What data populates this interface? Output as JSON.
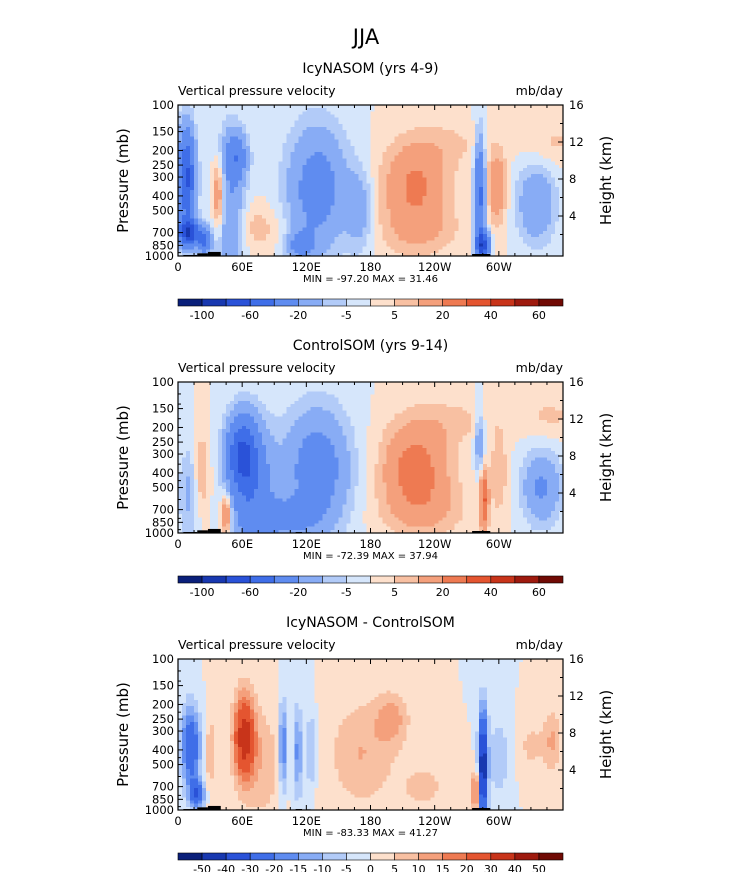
{
  "page": {
    "title": "JJA"
  },
  "chart_data": [
    {
      "type": "heatmap",
      "title": "IcyNASOM (yrs 4-9)",
      "left_label": "Vertical pressure velocity",
      "right_label": "mb/day",
      "ylabel": "Pressure (mb)",
      "y2label": "Height (km)",
      "x_ticks": [
        "0",
        "60E",
        "120E",
        "180",
        "120W",
        "60W"
      ],
      "x_tick_values": [
        0,
        60,
        120,
        180,
        240,
        300
      ],
      "xlim": [
        0,
        360
      ],
      "y_ticks": [
        "100",
        "150",
        "200",
        "250",
        "300",
        "400",
        "500",
        "700",
        "850",
        "1000"
      ],
      "y_tick_values": [
        100,
        150,
        200,
        250,
        300,
        400,
        500,
        700,
        850,
        1000
      ],
      "ylim": [
        1000,
        100
      ],
      "y_scale": "log",
      "y2_ticks": [
        "4",
        "8",
        "12",
        "16"
      ],
      "stats": "MIN = -97.20   MAX =  31.46",
      "levels": [
        -100,
        -80,
        -60,
        -40,
        -20,
        -10,
        -5,
        0,
        5,
        10,
        20,
        30,
        40,
        50,
        60
      ],
      "colorbar_labels": [
        "-100",
        "-60",
        "-20",
        "-5",
        "5",
        "20",
        "40",
        "60"
      ],
      "colors": [
        "#0a1f7a",
        "#1838b0",
        "#2a52d8",
        "#3f6ee8",
        "#5f8cf0",
        "#88acf5",
        "#b2cbf8",
        "#d6e6fb",
        "#fde0cc",
        "#f8c0a2",
        "#f4a07c",
        "#ee7a52",
        "#e45530",
        "#c8341a",
        "#9e1a0e",
        "#700a04"
      ],
      "blobs": [
        {
          "x": 8,
          "p": 300,
          "dx": 8,
          "dlp": 0.7,
          "v": -65
        },
        {
          "x": 10,
          "p": 700,
          "dx": 10,
          "dlp": 0.2,
          "v": -75
        },
        {
          "x": 25,
          "p": 800,
          "dx": 6,
          "dlp": 0.18,
          "v": -45
        },
        {
          "x": 38,
          "p": 400,
          "dx": 6,
          "dlp": 0.55,
          "v": 25
        },
        {
          "x": 48,
          "p": 500,
          "dx": 14,
          "dlp": 1.2,
          "v": -20
        },
        {
          "x": 55,
          "p": 220,
          "dx": 10,
          "dlp": 0.35,
          "v": -30
        },
        {
          "x": 75,
          "p": 650,
          "dx": 22,
          "dlp": 0.35,
          "v": 8
        },
        {
          "x": 130,
          "p": 360,
          "dx": 28,
          "dlp": 0.95,
          "v": -28
        },
        {
          "x": 170,
          "p": 500,
          "dx": 12,
          "dlp": 0.6,
          "v": -15
        },
        {
          "x": 115,
          "p": 850,
          "dx": 12,
          "dlp": 0.2,
          "v": -25
        },
        {
          "x": 222,
          "p": 340,
          "dx": 30,
          "dlp": 0.65,
          "v": 22
        },
        {
          "x": 225,
          "p": 700,
          "dx": 40,
          "dlp": 0.4,
          "v": 8
        },
        {
          "x": 255,
          "p": 180,
          "dx": 35,
          "dlp": 0.35,
          "v": 5
        },
        {
          "x": 282,
          "p": 400,
          "dx": 5,
          "dlp": 0.85,
          "v": -45
        },
        {
          "x": 285,
          "p": 850,
          "dx": 6,
          "dlp": 0.2,
          "v": -70
        },
        {
          "x": 298,
          "p": 350,
          "dx": 9,
          "dlp": 0.55,
          "v": 18
        },
        {
          "x": 335,
          "p": 450,
          "dx": 18,
          "dlp": 0.6,
          "v": -20
        },
        {
          "x": 350,
          "p": 180,
          "dx": 30,
          "dlp": 0.35,
          "v": 6
        }
      ]
    },
    {
      "type": "heatmap",
      "title": "ControlSOM (yrs 9-14)",
      "left_label": "Vertical pressure velocity",
      "right_label": "mb/day",
      "ylabel": "Pressure (mb)",
      "y2label": "Height (km)",
      "x_ticks": [
        "0",
        "60E",
        "120E",
        "180",
        "120W",
        "60W"
      ],
      "x_tick_values": [
        0,
        60,
        120,
        180,
        240,
        300
      ],
      "xlim": [
        0,
        360
      ],
      "y_ticks": [
        "100",
        "150",
        "200",
        "250",
        "300",
        "400",
        "500",
        "700",
        "850",
        "1000"
      ],
      "y_tick_values": [
        100,
        150,
        200,
        250,
        300,
        400,
        500,
        700,
        850,
        1000
      ],
      "ylim": [
        1000,
        100
      ],
      "y_scale": "log",
      "y2_ticks": [
        "4",
        "8",
        "12",
        "16"
      ],
      "stats": "MIN = -72.39   MAX =  37.94",
      "levels": [
        -100,
        -80,
        -60,
        -40,
        -20,
        -10,
        -5,
        0,
        5,
        10,
        20,
        30,
        40,
        50,
        60
      ],
      "colorbar_labels": [
        "-100",
        "-60",
        "-20",
        "-5",
        "5",
        "20",
        "40",
        "60"
      ],
      "colors": [
        "#0a1f7a",
        "#1838b0",
        "#2a52d8",
        "#3f6ee8",
        "#5f8cf0",
        "#88acf5",
        "#b2cbf8",
        "#d6e6fb",
        "#fde0cc",
        "#f8c0a2",
        "#f4a07c",
        "#ee7a52",
        "#e45530",
        "#c8341a",
        "#9e1a0e",
        "#700a04"
      ],
      "blobs": [
        {
          "x": 10,
          "p": 550,
          "dx": 10,
          "dlp": 0.7,
          "v": -12
        },
        {
          "x": 22,
          "p": 400,
          "dx": 7,
          "dlp": 0.6,
          "v": 12
        },
        {
          "x": 45,
          "p": 750,
          "dx": 5,
          "dlp": 0.3,
          "v": 25
        },
        {
          "x": 60,
          "p": 300,
          "dx": 14,
          "dlp": 0.55,
          "v": -55
        },
        {
          "x": 70,
          "p": 550,
          "dx": 20,
          "dlp": 1.0,
          "v": -30
        },
        {
          "x": 130,
          "p": 380,
          "dx": 30,
          "dlp": 0.9,
          "v": -30
        },
        {
          "x": 100,
          "p": 800,
          "dx": 30,
          "dlp": 0.3,
          "v": -20
        },
        {
          "x": 222,
          "p": 360,
          "dx": 30,
          "dlp": 0.65,
          "v": 25
        },
        {
          "x": 230,
          "p": 700,
          "dx": 40,
          "dlp": 0.45,
          "v": 10
        },
        {
          "x": 260,
          "p": 180,
          "dx": 40,
          "dlp": 0.35,
          "v": 6
        },
        {
          "x": 286,
          "p": 600,
          "dx": 4,
          "dlp": 0.5,
          "v": 30
        },
        {
          "x": 282,
          "p": 250,
          "dx": 5,
          "dlp": 0.5,
          "v": -18
        },
        {
          "x": 300,
          "p": 400,
          "dx": 8,
          "dlp": 0.6,
          "v": 10
        },
        {
          "x": 340,
          "p": 500,
          "dx": 18,
          "dlp": 0.55,
          "v": -22
        },
        {
          "x": 348,
          "p": 170,
          "dx": 30,
          "dlp": 0.35,
          "v": 6
        }
      ]
    },
    {
      "type": "heatmap",
      "title": "IcyNASOM - ControlSOM",
      "left_label": "Vertical pressure velocity",
      "right_label": "mb/day",
      "ylabel": "Pressure (mb)",
      "y2label": "Height (km)",
      "x_ticks": [
        "0",
        "60E",
        "120E",
        "180",
        "120W",
        "60W"
      ],
      "x_tick_values": [
        0,
        60,
        120,
        180,
        240,
        300
      ],
      "xlim": [
        0,
        360
      ],
      "y_ticks": [
        "100",
        "150",
        "200",
        "250",
        "300",
        "400",
        "500",
        "700",
        "850",
        "1000"
      ],
      "y_tick_values": [
        100,
        150,
        200,
        250,
        300,
        400,
        500,
        700,
        850,
        1000
      ],
      "ylim": [
        1000,
        100
      ],
      "y_scale": "log",
      "y2_ticks": [
        "4",
        "8",
        "12",
        "16"
      ],
      "stats": "MIN = -83.33   MAX =  41.27",
      "levels": [
        -50,
        -40,
        -30,
        -20,
        -15,
        -10,
        -5,
        0,
        5,
        10,
        15,
        20,
        30,
        40,
        50
      ],
      "colorbar_labels": [
        "-50",
        "-40",
        "-30",
        "-20",
        "-15",
        "-10",
        "-5",
        "0",
        "5",
        "10",
        "15",
        "20",
        "30",
        "40",
        "50"
      ],
      "colors": [
        "#0a1f7a",
        "#1838b0",
        "#2a52d8",
        "#3f6ee8",
        "#5f8cf0",
        "#88acf5",
        "#b2cbf8",
        "#d6e6fb",
        "#fde0cc",
        "#f8c0a2",
        "#f4a07c",
        "#ee7a52",
        "#e45530",
        "#c8341a",
        "#9e1a0e",
        "#700a04"
      ],
      "blobs": [
        {
          "x": 12,
          "p": 380,
          "dx": 9,
          "dlp": 0.6,
          "v": -30
        },
        {
          "x": 18,
          "p": 780,
          "dx": 7,
          "dlp": 0.2,
          "v": -30
        },
        {
          "x": 30,
          "p": 420,
          "dx": 6,
          "dlp": 0.7,
          "v": 8
        },
        {
          "x": 62,
          "p": 330,
          "dx": 10,
          "dlp": 0.65,
          "v": 35
        },
        {
          "x": 80,
          "p": 500,
          "dx": 18,
          "dlp": 0.9,
          "v": 8
        },
        {
          "x": 98,
          "p": 380,
          "dx": 4,
          "dlp": 0.7,
          "v": -22
        },
        {
          "x": 112,
          "p": 420,
          "dx": 4,
          "dlp": 0.7,
          "v": -18
        },
        {
          "x": 124,
          "p": 400,
          "dx": 4,
          "dlp": 0.6,
          "v": -12
        },
        {
          "x": 170,
          "p": 420,
          "dx": 28,
          "dlp": 0.8,
          "v": 10
        },
        {
          "x": 200,
          "p": 250,
          "dx": 16,
          "dlp": 0.4,
          "v": 12
        },
        {
          "x": 230,
          "p": 700,
          "dx": 30,
          "dlp": 0.5,
          "v": 6
        },
        {
          "x": 285,
          "p": 520,
          "dx": 4,
          "dlp": 0.85,
          "v": -50
        },
        {
          "x": 278,
          "p": 750,
          "dx": 3,
          "dlp": 0.3,
          "v": 25
        },
        {
          "x": 300,
          "p": 450,
          "dx": 12,
          "dlp": 0.7,
          "v": -8
        },
        {
          "x": 330,
          "p": 380,
          "dx": 15,
          "dlp": 0.5,
          "v": 6
        },
        {
          "x": 350,
          "p": 350,
          "dx": 8,
          "dlp": 0.5,
          "v": 10
        }
      ]
    }
  ]
}
